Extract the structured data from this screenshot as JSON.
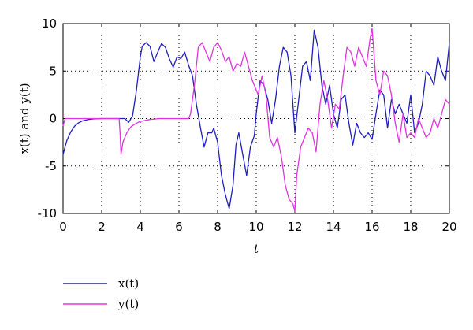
{
  "chart_data": {
    "type": "line",
    "xlabel": "t",
    "ylabel": "x(t) and y(t)",
    "xlim": [
      0,
      20
    ],
    "ylim": [
      -10,
      10
    ],
    "xticks": [
      0,
      2,
      4,
      6,
      8,
      10,
      12,
      14,
      16,
      18,
      20
    ],
    "yticks": [
      -10,
      -5,
      0,
      5,
      10
    ],
    "grid": true,
    "legend_position": "below-left",
    "series": [
      {
        "name": "x(t)",
        "color": "#1f1fbf",
        "x": [
          0,
          0.1,
          0.2,
          0.4,
          0.6,
          0.8,
          1.0,
          1.3,
          1.6,
          2.0,
          2.5,
          3.0,
          3.2,
          3.4,
          3.6,
          3.8,
          4.0,
          4.1,
          4.3,
          4.5,
          4.7,
          4.9,
          5.1,
          5.3,
          5.5,
          5.7,
          5.9,
          6.1,
          6.3,
          6.5,
          6.7,
          6.9,
          7.1,
          7.3,
          7.5,
          7.7,
          7.8,
          8.0,
          8.2,
          8.4,
          8.6,
          8.8,
          8.95,
          9.1,
          9.3,
          9.5,
          9.7,
          9.9,
          10.0,
          10.2,
          10.4,
          10.6,
          10.8,
          11.0,
          11.2,
          11.4,
          11.6,
          11.8,
          12.0,
          12.2,
          12.4,
          12.6,
          12.8,
          13.0,
          13.2,
          13.4,
          13.6,
          13.8,
          14.0,
          14.2,
          14.4,
          14.6,
          14.8,
          15.0,
          15.2,
          15.4,
          15.6,
          15.8,
          16.0,
          16.2,
          16.4,
          16.6,
          16.8,
          17.0,
          17.2,
          17.4,
          17.6,
          17.8,
          18.0,
          18.2,
          18.4,
          18.6,
          18.8,
          19.0,
          19.2,
          19.4,
          19.6,
          19.8,
          20.0
        ],
        "y": [
          -3.8,
          -3.0,
          -2.3,
          -1.4,
          -0.8,
          -0.45,
          -0.25,
          -0.1,
          -0.03,
          0,
          0,
          0,
          0,
          -0.4,
          0.3,
          3.0,
          6.5,
          7.6,
          8.0,
          7.6,
          6.0,
          7.0,
          7.9,
          7.5,
          6.3,
          5.4,
          6.5,
          6.3,
          7.0,
          5.6,
          4.5,
          1.5,
          -0.8,
          -3.0,
          -1.5,
          -1.5,
          -1.0,
          -2.5,
          -6.0,
          -8.0,
          -9.5,
          -7.0,
          -2.8,
          -1.5,
          -3.8,
          -6.0,
          -3.0,
          -1.8,
          0.5,
          4.0,
          3.5,
          2.0,
          -0.5,
          2.0,
          5.5,
          7.5,
          7.0,
          4.5,
          -1.5,
          2.0,
          5.5,
          6.0,
          4.0,
          9.3,
          7.5,
          3.5,
          1.5,
          3.5,
          0.5,
          -1.0,
          2.0,
          2.5,
          -0.5,
          -2.8,
          -0.5,
          -1.5,
          -2.0,
          -1.5,
          -2.2,
          0.5,
          3.0,
          2.5,
          -1.0,
          2.0,
          0.5,
          1.5,
          0.5,
          -0.5,
          2.5,
          -1.5,
          -0.5,
          1.5,
          5.0,
          4.5,
          3.5,
          6.5,
          5.0,
          4.0,
          8.0
        ]
      },
      {
        "name": "y(t)",
        "color": "#e033e0",
        "x": [
          0,
          0.1,
          0.3,
          0.5,
          1.0,
          1.5,
          2.0,
          2.5,
          2.9,
          2.95,
          3.0,
          3.1,
          3.3,
          3.5,
          3.7,
          4.0,
          4.5,
          5.0,
          5.5,
          6.0,
          6.3,
          6.5,
          6.6,
          6.8,
          7.0,
          7.2,
          7.4,
          7.6,
          7.8,
          8.0,
          8.2,
          8.4,
          8.6,
          8.8,
          9.0,
          9.2,
          9.4,
          9.6,
          9.8,
          10.0,
          10.1,
          10.3,
          10.5,
          10.7,
          10.9,
          11.1,
          11.3,
          11.5,
          11.7,
          11.9,
          12.0,
          12.1,
          12.3,
          12.5,
          12.7,
          12.9,
          13.1,
          13.3,
          13.5,
          13.7,
          13.9,
          14.1,
          14.3,
          14.5,
          14.7,
          14.9,
          15.1,
          15.3,
          15.5,
          15.7,
          15.9,
          16.0,
          16.2,
          16.4,
          16.6,
          16.8,
          17.0,
          17.2,
          17.4,
          17.6,
          17.8,
          18.0,
          18.2,
          18.4,
          18.6,
          18.8,
          19.0,
          19.2,
          19.4,
          19.6,
          19.8,
          20.0
        ],
        "y": [
          -0.8,
          0,
          0,
          0,
          0,
          0,
          0,
          0,
          0,
          -1.5,
          -3.8,
          -2.5,
          -1.5,
          -0.9,
          -0.6,
          -0.3,
          -0.1,
          0,
          0,
          0,
          0,
          0,
          0.5,
          3.5,
          7.5,
          8.0,
          7.0,
          6.0,
          7.5,
          8.0,
          7.2,
          6.0,
          6.5,
          5.0,
          5.8,
          5.5,
          7.0,
          5.5,
          4.0,
          3.0,
          2.5,
          4.5,
          2.5,
          -2.0,
          -3.0,
          -2.0,
          -4.0,
          -7.0,
          -8.5,
          -9.0,
          -9.8,
          -6.0,
          -3.0,
          -2.0,
          -1.0,
          -1.5,
          -3.5,
          1.5,
          4.0,
          2.0,
          -1.0,
          1.5,
          1.0,
          4.5,
          7.5,
          7.0,
          5.5,
          7.5,
          6.5,
          5.5,
          8.5,
          9.5,
          4.0,
          2.5,
          5.0,
          4.5,
          2.5,
          -0.5,
          -2.5,
          0.5,
          -2.0,
          -1.5,
          -2.0,
          0,
          -1.0,
          -2.0,
          -1.5,
          0,
          -1.0,
          0.5,
          2.0,
          1.5
        ]
      }
    ]
  }
}
